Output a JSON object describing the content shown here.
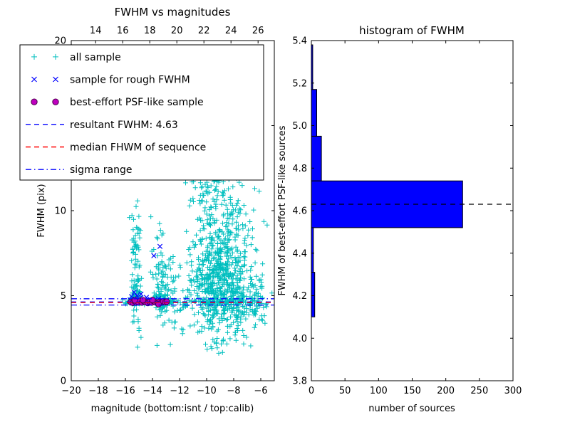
{
  "left_plot": {
    "title": "FWHM vs magnitudes",
    "xlabel": "magnitude (bottom:isnt / top:calib)",
    "ylabel": "FWHM (pix)",
    "legend": [
      {
        "label": "all sample",
        "marker": "plus",
        "color": "#00bfbf"
      },
      {
        "label": "sample for rough FWHM",
        "marker": "x",
        "color": "#0000ff"
      },
      {
        "label": "best-effort PSF-like sample",
        "marker": "circle",
        "color": "#bf00bf",
        "edge": "#4d004d"
      },
      {
        "label": "resultant FWHM: 4.63",
        "marker": "dashed-line",
        "color": "#0000ff"
      },
      {
        "label": "median FHWM of sequence",
        "marker": "dashed-line",
        "color": "#ff0000"
      },
      {
        "label": "sigma range",
        "marker": "dashdot-line",
        "color": "#0000ff"
      }
    ]
  },
  "right_plot": {
    "title": "histogram of FWHM",
    "xlabel": "number of sources",
    "ylabel": "FWHM of best-effort PSF-like sources"
  },
  "chart_data": [
    {
      "type": "scatter",
      "title": "FWHM vs magnitudes",
      "xlabel": "magnitude (bottom:isnt / top:calib)",
      "ylabel": "FWHM (pix)",
      "xlim": [
        -20,
        -5
      ],
      "ylim": [
        0,
        20
      ],
      "xlim_top_calib": [
        12.2,
        27.2
      ],
      "xticks_bottom": [
        -20,
        -18,
        -16,
        -14,
        -12,
        -10,
        -8,
        -6
      ],
      "xticks_top": [
        14,
        16,
        18,
        20,
        22,
        24,
        26
      ],
      "yticks": [
        0,
        5,
        10,
        15,
        20
      ],
      "series": [
        {
          "name": "all sample",
          "marker": "plus",
          "color": "#00bfbf",
          "clusters": [
            {
              "cx": -9.2,
              "cy": 5.5,
              "sx": 1.05,
              "sy": 1.6,
              "n": 480
            },
            {
              "cx": -8.5,
              "cy": 8.0,
              "sx": 0.95,
              "sy": 2.0,
              "n": 200
            },
            {
              "cx": -9.6,
              "cy": 11.5,
              "sx": 0.85,
              "sy": 2.0,
              "n": 120
            },
            {
              "cx": -10.0,
              "cy": 16.0,
              "sx": 0.85,
              "sy": 2.2,
              "n": 80
            },
            {
              "cx": -15.2,
              "cy": 6.8,
              "sx": 0.2,
              "sy": 2.3,
              "n": 70
            },
            {
              "cx": -15.2,
              "cy": 5.0,
              "sx": 0.18,
              "sy": 0.45,
              "n": 40
            },
            {
              "cx": -13.55,
              "cy": 6.2,
              "sx": 0.3,
              "sy": 1.5,
              "n": 45
            },
            {
              "cx": -13.5,
              "cy": 5.0,
              "sx": 0.25,
              "sy": 0.45,
              "n": 35
            },
            {
              "cx": -12.9,
              "cy": 5.0,
              "sx": 0.5,
              "sy": 1.0,
              "n": 40
            },
            {
              "cx": -11.8,
              "cy": 6.0,
              "sx": 0.55,
              "sy": 1.6,
              "n": 25
            },
            {
              "cx": -7.3,
              "cy": 4.9,
              "sx": 0.75,
              "sy": 1.0,
              "n": 130
            },
            {
              "cx": -6.4,
              "cy": 4.7,
              "sx": 0.4,
              "sy": 0.8,
              "n": 30
            }
          ],
          "band": {
            "x0": -16.0,
            "x1": -7.2,
            "y": 4.65,
            "sy": 0.1,
            "n": 120
          },
          "extra_points": [
            [
              -14.85,
              2.55
            ],
            [
              -16.2,
              4.75
            ],
            [
              -16.0,
              4.6
            ],
            [
              -6.1,
              5.9
            ],
            [
              -5.8,
              4.3
            ],
            [
              -6.45,
              11.3
            ],
            [
              -7.1,
              9.8
            ],
            [
              -7.3,
              12.1
            ],
            [
              -12.2,
              14.8
            ],
            [
              -11.6,
              16.2
            ],
            [
              -10.9,
              19.3
            ],
            [
              -9.4,
              19.6
            ],
            [
              -8.9,
              18.4
            ],
            [
              -12.4,
              3.1
            ],
            [
              -13.1,
              3.4
            ]
          ]
        },
        {
          "name": "sample for rough FWHM",
          "marker": "x",
          "color": "#0000ff",
          "points": [
            [
              -15.65,
              4.75
            ],
            [
              -15.55,
              4.95
            ],
            [
              -15.45,
              4.62
            ],
            [
              -15.35,
              5.2
            ],
            [
              -15.25,
              4.8
            ],
            [
              -15.15,
              5.0
            ],
            [
              -15.05,
              4.65
            ],
            [
              -14.95,
              4.85
            ],
            [
              -14.85,
              5.1
            ],
            [
              -14.75,
              4.7
            ],
            [
              -14.6,
              4.62
            ],
            [
              -14.45,
              4.9
            ],
            [
              -14.3,
              4.68
            ],
            [
              -14.15,
              4.78
            ],
            [
              -14.0,
              4.62
            ],
            [
              -13.85,
              4.72
            ],
            [
              -13.9,
              7.35
            ],
            [
              -13.45,
              7.9
            ],
            [
              -13.7,
              4.65
            ],
            [
              -13.55,
              4.82
            ],
            [
              -13.4,
              4.6
            ],
            [
              -13.25,
              4.7
            ],
            [
              -13.1,
              4.62
            ],
            [
              -12.95,
              4.75
            ]
          ]
        },
        {
          "name": "best-effort PSF-like sample",
          "marker": "circle",
          "color": "#bf00bf",
          "edge": "#4d004d",
          "points": [
            [
              -15.6,
              4.62
            ],
            [
              -15.45,
              4.58
            ],
            [
              -15.3,
              4.66
            ],
            [
              -15.18,
              4.6
            ],
            [
              -15.05,
              4.63
            ],
            [
              -14.9,
              4.7
            ],
            [
              -14.78,
              4.6
            ],
            [
              -14.62,
              4.66
            ],
            [
              -14.5,
              4.62
            ],
            [
              -14.35,
              4.57
            ],
            [
              -14.2,
              4.64
            ],
            [
              -14.05,
              4.6
            ],
            [
              -13.92,
              4.68
            ],
            [
              -13.78,
              4.62
            ],
            [
              -13.62,
              4.56
            ],
            [
              -13.48,
              4.63
            ],
            [
              -13.35,
              4.6
            ],
            [
              -13.2,
              4.66
            ],
            [
              -13.05,
              4.62
            ],
            [
              -12.95,
              4.65
            ],
            [
              -14.7,
              4.74
            ],
            [
              -15.3,
              4.73
            ],
            [
              -13.55,
              4.5
            ],
            [
              -14.0,
              4.75
            ]
          ]
        }
      ],
      "lines": [
        {
          "name": "resultant-fwhm",
          "y": 4.63,
          "style": "dashed",
          "color": "#0000ff"
        },
        {
          "name": "median-fwhm",
          "y": 4.6,
          "style": "dashed",
          "color": "#ff0000"
        },
        {
          "name": "sigma-low",
          "y": 4.45,
          "style": "dashdot",
          "color": "#0000ff"
        },
        {
          "name": "sigma-high",
          "y": 4.82,
          "style": "dashdot",
          "color": "#0000ff"
        }
      ],
      "resultant_fwhm": 4.63
    },
    {
      "type": "bar",
      "orientation": "horizontal",
      "title": "histogram of FWHM",
      "xlabel": "number of sources",
      "ylabel": "FWHM of best-effort PSF-like sources",
      "xlim": [
        0,
        300
      ],
      "ylim": [
        3.8,
        5.4
      ],
      "xticks": [
        0,
        50,
        100,
        150,
        200,
        250,
        300
      ],
      "yticks": [
        3.8,
        4.0,
        4.2,
        4.4,
        4.6,
        4.8,
        5.0,
        5.2,
        5.4
      ],
      "bin_edges": [
        4.1,
        4.31,
        4.52,
        4.74,
        4.95,
        5.17,
        5.38
      ],
      "counts": [
        5,
        3,
        225,
        15,
        8,
        2
      ],
      "bar_color": "#0000ff",
      "median_line": {
        "y": 4.63,
        "style": "dashed",
        "color": "#000000"
      }
    }
  ]
}
